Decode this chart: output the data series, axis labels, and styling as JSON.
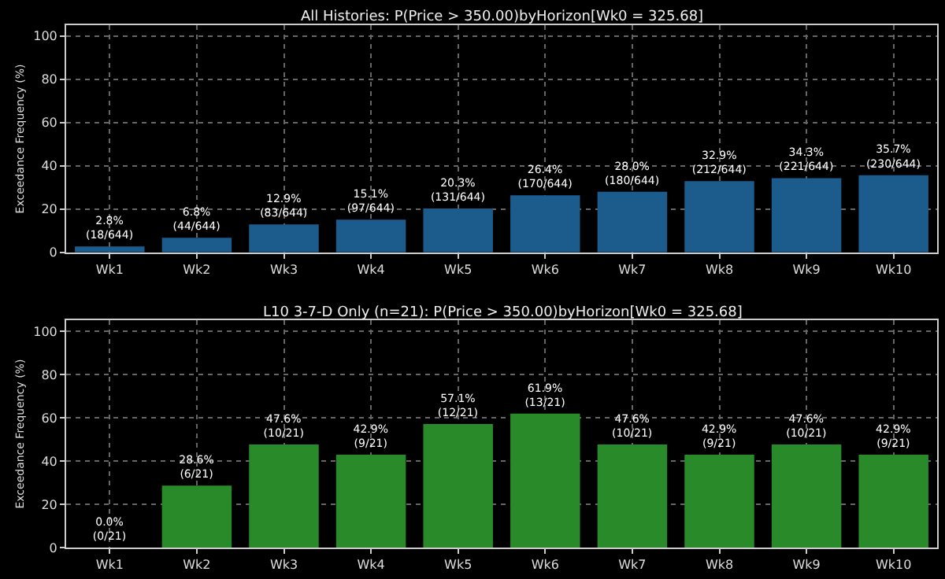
{
  "chart_data": [
    {
      "type": "bar",
      "title": "All Histories: P(Price > 350.00)byHorizon[Wk0 = 325.68]",
      "ylabel": "Exceedance Frequency (%)",
      "categories": [
        "Wk1",
        "Wk2",
        "Wk3",
        "Wk4",
        "Wk5",
        "Wk6",
        "Wk7",
        "Wk8",
        "Wk9",
        "Wk10"
      ],
      "series": [
        {
          "color": "#1b5c8c",
          "values": [
            2.8,
            6.8,
            12.9,
            15.1,
            20.3,
            26.4,
            28.0,
            32.9,
            34.3,
            35.7
          ]
        }
      ],
      "value_labels": [
        "2.8%\n(18/644)",
        "6.8%\n(44/644)",
        "12.9%\n(83/644)",
        "15.1%\n(97/644)",
        "20.3%\n(131/644)",
        "26.4%\n(170/644)",
        "28.0%\n(180/644)",
        "32.9%\n(212/644)",
        "34.3%\n(221/644)",
        "35.7%\n(230/644)"
      ],
      "ylim": [
        0,
        105
      ],
      "yticks": [
        0,
        20,
        40,
        60,
        80,
        100
      ],
      "grid": true
    },
    {
      "type": "bar",
      "title": "L10 3-7-D Only (n=21): P(Price > 350.00)byHorizon[Wk0 = 325.68]",
      "ylabel": "Exceedance Frequency (%)",
      "categories": [
        "Wk1",
        "Wk2",
        "Wk3",
        "Wk4",
        "Wk5",
        "Wk6",
        "Wk7",
        "Wk8",
        "Wk9",
        "Wk10"
      ],
      "series": [
        {
          "color": "#288a28",
          "values": [
            0.0,
            28.6,
            47.6,
            42.9,
            57.1,
            61.9,
            47.6,
            42.9,
            47.6,
            42.9
          ]
        }
      ],
      "value_labels": [
        "0.0%\n(0/21)",
        "28.6%\n(6/21)",
        "47.6%\n(10/21)",
        "42.9%\n(9/21)",
        "57.1%\n(12/21)",
        "61.9%\n(13/21)",
        "47.6%\n(10/21)",
        "42.9%\n(9/21)",
        "47.6%\n(10/21)",
        "42.9%\n(9/21)"
      ],
      "ylim": [
        0,
        105
      ],
      "yticks": [
        0,
        20,
        40,
        60,
        80,
        100
      ],
      "grid": true
    }
  ]
}
